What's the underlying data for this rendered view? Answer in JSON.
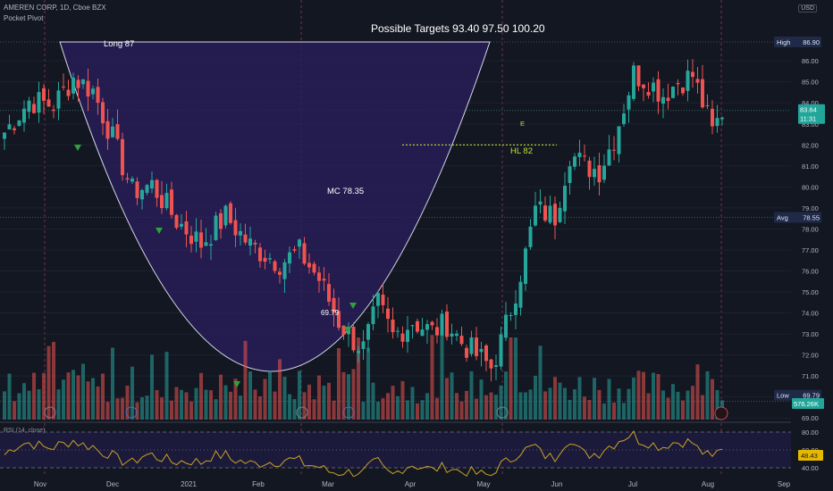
{
  "header": {
    "symbol_line": "AMEREN CORP, 1D, Cboe BZX",
    "indicator": "Pocket Pivot",
    "currency": "USD"
  },
  "annotations": {
    "targets": "Possible Targets  93.40  97.50  100.20",
    "long": "Long  87",
    "mc": "MC 78.35",
    "hl": "HL  82",
    "low_note": "69.79",
    "earnings_letter": "E"
  },
  "price_tags": {
    "high": {
      "label": "High",
      "value": "86.90"
    },
    "avg": {
      "label": "Avg",
      "value": "78.55"
    },
    "low": {
      "label": "Low",
      "value": "69.79"
    },
    "last": {
      "value": "83.64",
      "countdown": "11:31"
    },
    "volume": {
      "value": "576.26K"
    }
  },
  "rsi": {
    "label": "RSI (14, close)",
    "value": "48.43",
    "ticks": [
      "80.00",
      "60.00",
      "40.00"
    ]
  },
  "colors": {
    "background": "#131722",
    "up": "#26a69a",
    "down": "#ef5350",
    "cup_fill": "#2b1f5e",
    "rsi_line": "#c9a227",
    "hl_line": "#c0e030",
    "marker": "#2da33a"
  },
  "chart_data": {
    "type": "candlestick",
    "symbol": "AMEREN CORP",
    "interval": "1D",
    "exchange": "Cboe BZX",
    "ylim": [
      68.6,
      87.9
    ],
    "y_ticks": [
      "86.00",
      "85.00",
      "84.00",
      "83.00",
      "82.00",
      "81.00",
      "80.00",
      "79.00",
      "78.00",
      "77.00",
      "76.00",
      "75.00",
      "74.00",
      "73.00",
      "72.00",
      "71.00",
      "70.00",
      "69.00"
    ],
    "x_ticks": [
      "Nov",
      "Dec",
      "2021",
      "Feb",
      "Mar",
      "Apr",
      "May",
      "Jun",
      "Jul",
      "Aug",
      "Sep"
    ],
    "reference_levels": {
      "high": 86.9,
      "avg": 78.55,
      "low": 69.79,
      "hl": 82,
      "last": 83.64
    },
    "targets": [
      93.4,
      97.5,
      100.2
    ],
    "anchors": [
      [
        0,
        82.6
      ],
      [
        5,
        84.1
      ],
      [
        10,
        83.9
      ],
      [
        14,
        85.2
      ],
      [
        18,
        84.6
      ],
      [
        22,
        82.3
      ],
      [
        26,
        79.8
      ],
      [
        30,
        80.1
      ],
      [
        35,
        78.4
      ],
      [
        40,
        77.3
      ],
      [
        45,
        78.6
      ],
      [
        50,
        77.2
      ],
      [
        56,
        76.4
      ],
      [
        60,
        76.9
      ],
      [
        64,
        75.6
      ],
      [
        68,
        73.6
      ],
      [
        71,
        72.7
      ],
      [
        73,
        72.3
      ],
      [
        76,
        74.4
      ],
      [
        79,
        72.9
      ],
      [
        83,
        73.6
      ],
      [
        87,
        73.1
      ],
      [
        90,
        73.5
      ],
      [
        93,
        72.6
      ],
      [
        96,
        72.0
      ],
      [
        99,
        71.4
      ],
      [
        101,
        72.6
      ],
      [
        103,
        74.2
      ],
      [
        106,
        76.8
      ],
      [
        108,
        78.9
      ],
      [
        112,
        78.6
      ],
      [
        115,
        81.6
      ],
      [
        118,
        81.0
      ],
      [
        121,
        80.8
      ],
      [
        124,
        82.3
      ],
      [
        128,
        85.4
      ],
      [
        131,
        85.0
      ],
      [
        134,
        84.4
      ],
      [
        137,
        85.0
      ],
      [
        140,
        85.3
      ],
      [
        142,
        84.0
      ],
      [
        144,
        82.6
      ],
      [
        146,
        83.6
      ]
    ]
  }
}
